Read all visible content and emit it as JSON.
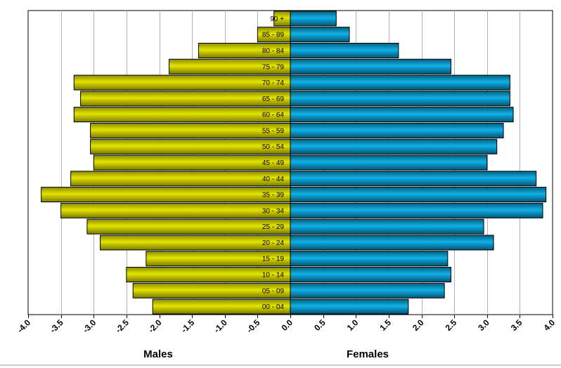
{
  "chart_data": {
    "type": "bar",
    "orientation": "horizontal",
    "layout": "population-pyramid",
    "categories": [
      "00 - 04",
      "05 - 09",
      "10 - 14",
      "15 - 19",
      "20 - 24",
      "25 - 29",
      "30 - 34",
      "35 - 39",
      "40 - 44",
      "45 - 49",
      "50 - 54",
      "55 - 59",
      "60 - 64",
      "65 - 69",
      "70 - 74",
      "75 - 79",
      "80 - 84",
      "85 - 89",
      "90 +"
    ],
    "series": [
      {
        "values": [
          -2.1,
          -2.4,
          -2.5,
          -2.2,
          -2.9,
          -3.1,
          -3.5,
          -3.8,
          -3.35,
          -3.0,
          -3.05,
          -3.05,
          -3.3,
          -3.2,
          -3.3,
          -1.85,
          -1.4,
          -0.5,
          -0.25
        ],
        "color": "#c8c800"
      },
      {
        "values": [
          1.8,
          2.35,
          2.45,
          2.4,
          3.1,
          2.95,
          3.85,
          3.9,
          3.75,
          3.0,
          3.15,
          3.25,
          3.4,
          3.35,
          3.35,
          2.45,
          1.65,
          0.9,
          0.7
        ],
        "color": "#0099cc"
      }
    ],
    "xlim": [
      -4.0,
      4.0
    ],
    "x_ticks": [
      "-4.0",
      "-3.5",
      "-3.0",
      "-2.5",
      "-2.0",
      "-1.5",
      "-1.0",
      "-0.5",
      "0.0",
      "0.5",
      "1.0",
      "1.5",
      "2.0",
      "2.5",
      "3.0",
      "3.5",
      "4.0"
    ],
    "grid": "vertical",
    "axis_titles": {
      "left": "Males",
      "right": "Females"
    }
  }
}
